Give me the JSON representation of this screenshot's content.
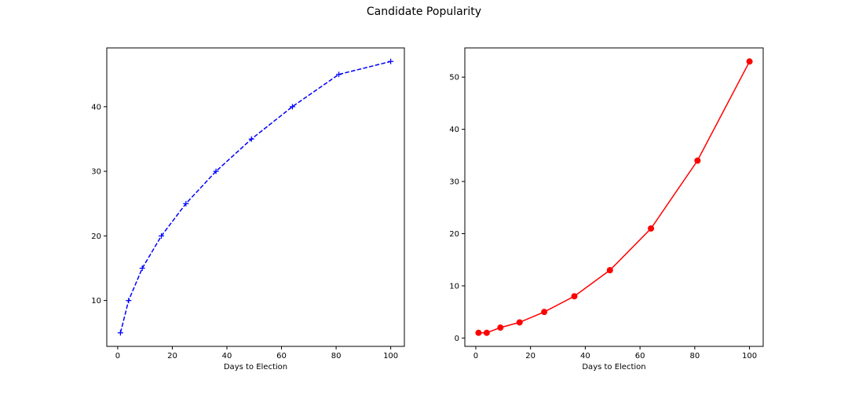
{
  "figure": {
    "title": "Candidate Popularity"
  },
  "chart_data": [
    {
      "type": "line",
      "xlabel": "Days to Election",
      "ylabel": "",
      "xlim": [
        -4,
        105
      ],
      "ylim": [
        2.9,
        49.1
      ],
      "xticks": [
        0,
        20,
        40,
        60,
        80,
        100
      ],
      "yticks": [
        10,
        20,
        30,
        40
      ],
      "grid": false,
      "series": [
        {
          "x": [
            1,
            4,
            9,
            16,
            25,
            36,
            49,
            64,
            81,
            100
          ],
          "values": [
            5,
            10,
            15,
            20,
            25,
            30,
            35,
            40,
            45,
            47
          ],
          "color": "#0000ff",
          "line_style": "dashed",
          "marker": "plus"
        }
      ]
    },
    {
      "type": "line",
      "xlabel": "Days to Election",
      "ylabel": "",
      "xlim": [
        -4,
        105
      ],
      "ylim": [
        -1.6,
        55.6
      ],
      "xticks": [
        0,
        20,
        40,
        60,
        80,
        100
      ],
      "yticks": [
        0,
        10,
        20,
        30,
        40,
        50
      ],
      "grid": false,
      "series": [
        {
          "x": [
            1,
            4,
            9,
            16,
            25,
            36,
            49,
            64,
            81,
            100
          ],
          "values": [
            1,
            1,
            2,
            3,
            5,
            8,
            13,
            21,
            34,
            53
          ],
          "color": "#ff0000",
          "line_style": "solid",
          "marker": "circle"
        }
      ]
    }
  ]
}
